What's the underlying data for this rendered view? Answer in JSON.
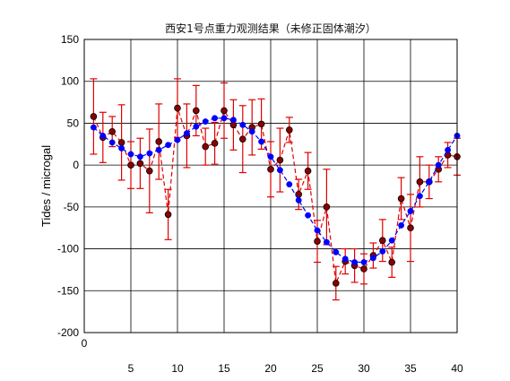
{
  "chart_data": {
    "type": "line",
    "title": "西安1号点重力观测结果（未修正固体潮汐）",
    "xlabel": "",
    "ylabel": "Tides / microgal",
    "xlim": [
      0,
      40
    ],
    "ylim": [
      -200,
      150
    ],
    "xticks": [
      5,
      10,
      15,
      20,
      25,
      30,
      35,
      40
    ],
    "xticks_extra": [
      0
    ],
    "yticks": [
      -200,
      -150,
      -100,
      -50,
      0,
      50,
      100,
      150
    ],
    "grid": true,
    "series": [
      {
        "style": "dashed-line-with-errorbars",
        "color": "#e00000",
        "marker_fill": "#8b0000",
        "x": [
          1,
          2,
          3,
          4,
          5,
          6,
          7,
          8,
          9,
          10,
          11,
          12,
          13,
          14,
          15,
          16,
          17,
          18,
          19,
          20,
          21,
          22,
          23,
          24,
          25,
          26,
          27,
          28,
          29,
          30,
          31,
          32,
          33,
          34,
          35,
          36,
          37,
          38,
          39,
          40
        ],
        "y": [
          58,
          33,
          40,
          27,
          0,
          2,
          -7,
          28,
          -59,
          68,
          35,
          65,
          22,
          26,
          65,
          48,
          31,
          45,
          49,
          -5,
          6,
          42,
          -35,
          -7,
          -91,
          -50,
          -141,
          -115,
          -120,
          -124,
          -108,
          -90,
          -116,
          -40,
          -75,
          -20,
          -20,
          -5,
          12,
          10
        ],
        "err": [
          45,
          30,
          18,
          45,
          28,
          30,
          50,
          45,
          30,
          35,
          38,
          30,
          22,
          25,
          33,
          30,
          40,
          33,
          30,
          33,
          38,
          15,
          18,
          22,
          25,
          45,
          20,
          15,
          20,
          18,
          15,
          25,
          18,
          25,
          40,
          30,
          20,
          15,
          15,
          22
        ]
      },
      {
        "style": "dashed-line-with-markers",
        "color": "#0000ff",
        "x": [
          1,
          2,
          3,
          4,
          5,
          6,
          7,
          8,
          9,
          10,
          11,
          12,
          13,
          14,
          15,
          16,
          17,
          18,
          19,
          20,
          21,
          22,
          23,
          24,
          25,
          26,
          27,
          28,
          29,
          30,
          31,
          32,
          33,
          34,
          35,
          36,
          37,
          38,
          39,
          40
        ],
        "y": [
          45,
          35,
          27,
          20,
          13,
          10,
          14,
          18,
          24,
          30,
          38,
          46,
          52,
          56,
          56,
          54,
          48,
          40,
          28,
          10,
          -6,
          -23,
          -42,
          -60,
          -78,
          -92,
          -104,
          -112,
          -116,
          -116,
          -111,
          -103,
          -90,
          -72,
          -55,
          -37,
          -20,
          0,
          18,
          35
        ]
      }
    ]
  }
}
